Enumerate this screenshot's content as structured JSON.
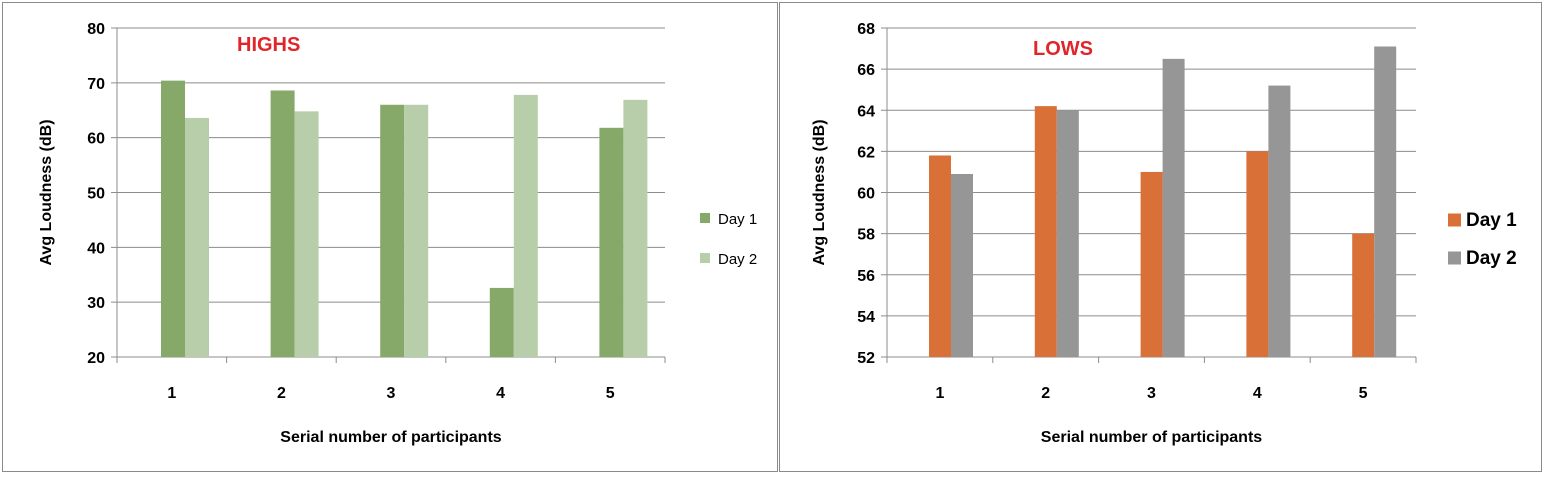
{
  "chart_data": [
    {
      "type": "bar",
      "title": "HIGHS",
      "title_color": "#e0262b",
      "xlabel": "Serial number of participants",
      "ylabel": "Avg Loudness (dB)",
      "categories": [
        "1",
        "2",
        "3",
        "4",
        "5"
      ],
      "ylim": [
        20,
        80
      ],
      "yticks": [
        "20",
        "30",
        "40",
        "50",
        "60",
        "70",
        "80"
      ],
      "grid": true,
      "legend_position": "right",
      "series": [
        {
          "name": "Day 1",
          "color": "#86a96a",
          "values": [
            70.4,
            68.6,
            66.0,
            32.6,
            61.8
          ]
        },
        {
          "name": "Day 2",
          "color": "#b8ceaa",
          "values": [
            63.6,
            64.8,
            66.0,
            67.8,
            66.9
          ]
        }
      ]
    },
    {
      "type": "bar",
      "title": "LOWS",
      "title_color": "#e0262b",
      "xlabel": "Serial number of participants",
      "ylabel": "Avg Loudness (dB)",
      "categories": [
        "1",
        "2",
        "3",
        "4",
        "5"
      ],
      "ylim": [
        52,
        68
      ],
      "yticks": [
        "52",
        "54",
        "56",
        "58",
        "60",
        "62",
        "64",
        "66",
        "68"
      ],
      "grid": true,
      "legend_position": "right",
      "series": [
        {
          "name": "Day 1",
          "color": "#d87038",
          "values": [
            61.8,
            64.2,
            61.0,
            62.0,
            58.0
          ]
        },
        {
          "name": "Day 2",
          "color": "#969696",
          "values": [
            60.9,
            64.0,
            66.5,
            65.2,
            67.1
          ]
        }
      ]
    }
  ]
}
